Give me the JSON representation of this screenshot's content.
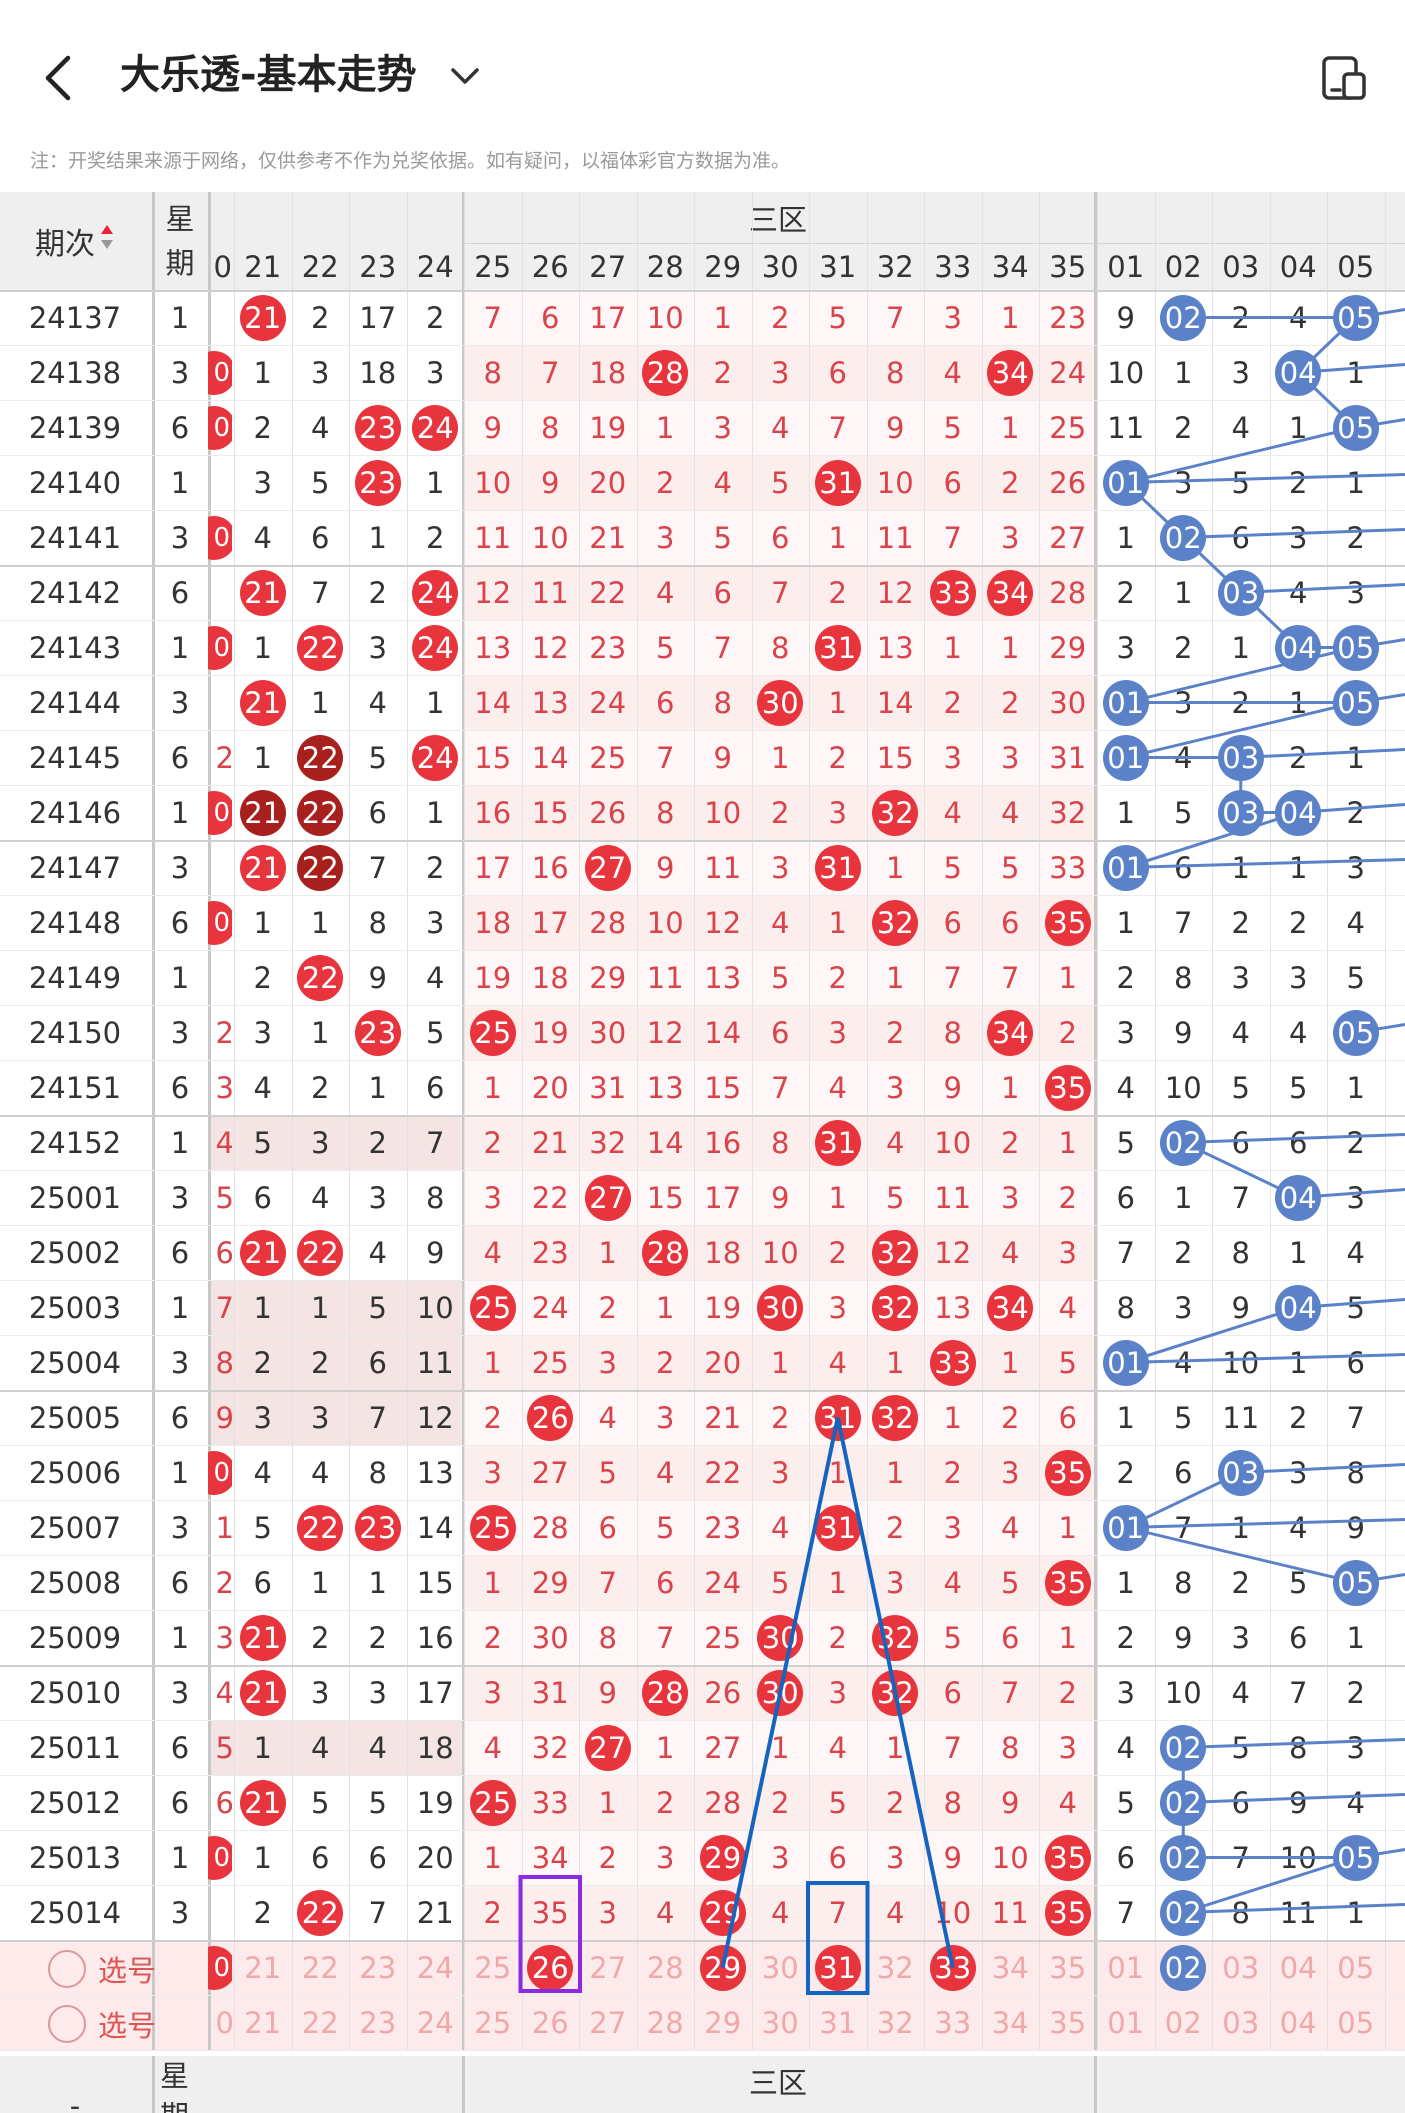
{
  "header": {
    "title": "大乐透-基本走势",
    "back_icon": "chevron-left-icon",
    "dropdown_icon": "chevron-down-icon",
    "layout_icon": "phone-layout-icon"
  },
  "note": "注：开奖结果来源于网络，仅供参考不作为兑奖依据。如有疑问，以福体彩官方数据为准。",
  "table": {
    "period_header": "期次",
    "week_header": "星期",
    "zone_header": "三区",
    "partial_col_label": "0",
    "front_cols": [
      "21",
      "22",
      "23",
      "24",
      "25",
      "26",
      "27",
      "28",
      "29",
      "30",
      "31",
      "32",
      "33",
      "34",
      "35"
    ],
    "back_cols": [
      "01",
      "02",
      "03",
      "04",
      "05"
    ],
    "rows": [
      {
        "period": "24137",
        "week": "1",
        "partial": "",
        "v": [
          "21",
          "2",
          "17",
          "2",
          "7",
          "6",
          "17",
          "10",
          "1",
          "2",
          "5",
          "7",
          "3",
          "1",
          "23"
        ],
        "b": [
          "9",
          "02",
          "2",
          "4",
          "05"
        ]
      },
      {
        "period": "24138",
        "week": "3",
        "partial": "0",
        "v": [
          "1",
          "3",
          "18",
          "3",
          "8",
          "7",
          "18",
          "28",
          "2",
          "3",
          "6",
          "8",
          "4",
          "34",
          "24"
        ],
        "b": [
          "10",
          "1",
          "3",
          "04",
          "1"
        ]
      },
      {
        "period": "24139",
        "week": "6",
        "partial": "0",
        "v": [
          "2",
          "4",
          "23",
          "24",
          "9",
          "8",
          "19",
          "1",
          "3",
          "4",
          "7",
          "9",
          "5",
          "1",
          "25"
        ],
        "b": [
          "11",
          "2",
          "4",
          "1",
          "05"
        ]
      },
      {
        "period": "24140",
        "week": "1",
        "partial": "",
        "v": [
          "3",
          "5",
          "23",
          "1",
          "10",
          "9",
          "20",
          "2",
          "4",
          "5",
          "31",
          "10",
          "6",
          "2",
          "26"
        ],
        "b": [
          "01",
          "3",
          "5",
          "2",
          "1"
        ]
      },
      {
        "period": "24141",
        "week": "3",
        "partial": "0",
        "v": [
          "4",
          "6",
          "1",
          "2",
          "11",
          "10",
          "21",
          "3",
          "5",
          "6",
          "1",
          "11",
          "7",
          "3",
          "27"
        ],
        "b": [
          "1",
          "02",
          "6",
          "3",
          "2"
        ]
      },
      {
        "period": "24142",
        "week": "6",
        "partial": "",
        "v": [
          "21",
          "7",
          "2",
          "24",
          "12",
          "11",
          "22",
          "4",
          "6",
          "7",
          "2",
          "12",
          "33",
          "34",
          "28"
        ],
        "b": [
          "2",
          "1",
          "03",
          "4",
          "3"
        ]
      },
      {
        "period": "24143",
        "week": "1",
        "partial": "0",
        "v": [
          "1",
          "22",
          "3",
          "24",
          "13",
          "12",
          "23",
          "5",
          "7",
          "8",
          "31",
          "13",
          "1",
          "1",
          "29"
        ],
        "b": [
          "3",
          "2",
          "1",
          "04",
          "05"
        ]
      },
      {
        "period": "24144",
        "week": "3",
        "partial": "",
        "v": [
          "21",
          "1",
          "4",
          "1",
          "14",
          "13",
          "24",
          "6",
          "8",
          "30",
          "1",
          "14",
          "2",
          "2",
          "30"
        ],
        "b": [
          "01",
          "3",
          "2",
          "1",
          "05"
        ]
      },
      {
        "period": "24145",
        "week": "6",
        "partial": "2",
        "v": [
          "1",
          "22",
          "5",
          "24",
          "15",
          "14",
          "25",
          "7",
          "9",
          "1",
          "2",
          "15",
          "3",
          "3",
          "31"
        ],
        "b": [
          "01",
          "4",
          "03",
          "2",
          "1"
        ]
      },
      {
        "period": "24146",
        "week": "1",
        "partial": "0",
        "v": [
          "21",
          "22",
          "6",
          "1",
          "16",
          "15",
          "26",
          "8",
          "10",
          "2",
          "3",
          "32",
          "4",
          "4",
          "32"
        ],
        "b": [
          "1",
          "5",
          "03",
          "04",
          "2"
        ]
      },
      {
        "period": "24147",
        "week": "3",
        "partial": "",
        "v": [
          "21",
          "22",
          "7",
          "2",
          "17",
          "16",
          "27",
          "9",
          "11",
          "3",
          "31",
          "1",
          "5",
          "5",
          "33"
        ],
        "b": [
          "01",
          "6",
          "1",
          "1",
          "3"
        ]
      },
      {
        "period": "24148",
        "week": "6",
        "partial": "0",
        "v": [
          "1",
          "1",
          "8",
          "3",
          "18",
          "17",
          "28",
          "10",
          "12",
          "4",
          "1",
          "32",
          "6",
          "6",
          "35"
        ],
        "b": [
          "1",
          "7",
          "2",
          "2",
          "4"
        ]
      },
      {
        "period": "24149",
        "week": "1",
        "partial": "",
        "v": [
          "2",
          "22",
          "9",
          "4",
          "19",
          "18",
          "29",
          "11",
          "13",
          "5",
          "2",
          "1",
          "7",
          "7",
          "1"
        ],
        "b": [
          "2",
          "8",
          "3",
          "3",
          "5"
        ]
      },
      {
        "period": "24150",
        "week": "3",
        "partial": "2",
        "v": [
          "3",
          "1",
          "23",
          "5",
          "25",
          "19",
          "30",
          "12",
          "14",
          "6",
          "3",
          "2",
          "8",
          "34",
          "2"
        ],
        "b": [
          "3",
          "9",
          "4",
          "4",
          "05"
        ]
      },
      {
        "period": "24151",
        "week": "6",
        "partial": "3",
        "v": [
          "4",
          "2",
          "1",
          "6",
          "1",
          "20",
          "31",
          "13",
          "15",
          "7",
          "4",
          "3",
          "9",
          "1",
          "35"
        ],
        "b": [
          "4",
          "10",
          "5",
          "5",
          "1"
        ]
      },
      {
        "period": "24152",
        "week": "1",
        "partial": "4",
        "v": [
          "5",
          "3",
          "2",
          "7",
          "2",
          "21",
          "32",
          "14",
          "16",
          "8",
          "31",
          "4",
          "10",
          "2",
          "1"
        ],
        "b": [
          "5",
          "02",
          "6",
          "6",
          "2"
        ]
      },
      {
        "period": "25001",
        "week": "3",
        "partial": "5",
        "v": [
          "6",
          "4",
          "3",
          "8",
          "3",
          "22",
          "27",
          "15",
          "17",
          "9",
          "1",
          "5",
          "11",
          "3",
          "2"
        ],
        "b": [
          "6",
          "1",
          "7",
          "04",
          "3"
        ]
      },
      {
        "period": "25002",
        "week": "6",
        "partial": "6",
        "v": [
          "21",
          "22",
          "4",
          "9",
          "4",
          "23",
          "1",
          "28",
          "18",
          "10",
          "2",
          "32",
          "12",
          "4",
          "3"
        ],
        "b": [
          "7",
          "2",
          "8",
          "1",
          "4"
        ]
      },
      {
        "period": "25003",
        "week": "1",
        "partial": "7",
        "v": [
          "1",
          "1",
          "5",
          "10",
          "25",
          "24",
          "2",
          "1",
          "19",
          "30",
          "3",
          "32",
          "13",
          "34",
          "4"
        ],
        "b": [
          "8",
          "3",
          "9",
          "04",
          "5"
        ]
      },
      {
        "period": "25004",
        "week": "3",
        "partial": "8",
        "v": [
          "2",
          "2",
          "6",
          "11",
          "1",
          "25",
          "3",
          "2",
          "20",
          "1",
          "4",
          "1",
          "33",
          "1",
          "5"
        ],
        "b": [
          "01",
          "4",
          "10",
          "1",
          "6"
        ]
      },
      {
        "period": "25005",
        "week": "6",
        "partial": "9",
        "v": [
          "3",
          "3",
          "7",
          "12",
          "2",
          "26",
          "4",
          "3",
          "21",
          "2",
          "31",
          "32",
          "1",
          "2",
          "6"
        ],
        "b": [
          "1",
          "5",
          "11",
          "2",
          "7"
        ]
      },
      {
        "period": "25006",
        "week": "1",
        "partial": "0",
        "v": [
          "4",
          "4",
          "8",
          "13",
          "3",
          "27",
          "5",
          "4",
          "22",
          "3",
          "1",
          "1",
          "2",
          "3",
          "35"
        ],
        "b": [
          "2",
          "6",
          "03",
          "3",
          "8"
        ]
      },
      {
        "period": "25007",
        "week": "3",
        "partial": "1",
        "v": [
          "5",
          "22",
          "23",
          "14",
          "25",
          "28",
          "6",
          "5",
          "23",
          "4",
          "31",
          "2",
          "3",
          "4",
          "1"
        ],
        "b": [
          "01",
          "7",
          "1",
          "4",
          "9"
        ]
      },
      {
        "period": "25008",
        "week": "6",
        "partial": "2",
        "v": [
          "6",
          "1",
          "1",
          "15",
          "1",
          "29",
          "7",
          "6",
          "24",
          "5",
          "1",
          "3",
          "4",
          "5",
          "35"
        ],
        "b": [
          "1",
          "8",
          "2",
          "5",
          "05"
        ]
      },
      {
        "period": "25009",
        "week": "1",
        "partial": "3",
        "v": [
          "21",
          "2",
          "2",
          "16",
          "2",
          "30",
          "8",
          "7",
          "25",
          "30",
          "2",
          "32",
          "5",
          "6",
          "1"
        ],
        "b": [
          "2",
          "9",
          "3",
          "6",
          "1"
        ]
      },
      {
        "period": "25010",
        "week": "3",
        "partial": "4",
        "v": [
          "21",
          "3",
          "3",
          "17",
          "3",
          "31",
          "9",
          "28",
          "26",
          "30",
          "3",
          "32",
          "6",
          "7",
          "2"
        ],
        "b": [
          "3",
          "10",
          "4",
          "7",
          "2"
        ]
      },
      {
        "period": "25011",
        "week": "6",
        "partial": "5",
        "v": [
          "1",
          "4",
          "4",
          "18",
          "4",
          "32",
          "27",
          "1",
          "27",
          "1",
          "4",
          "1",
          "7",
          "8",
          "3"
        ],
        "b": [
          "4",
          "02",
          "5",
          "8",
          "3"
        ]
      },
      {
        "period": "25012",
        "week": "6",
        "partial": "6",
        "v": [
          "21",
          "5",
          "5",
          "19",
          "25",
          "33",
          "1",
          "2",
          "28",
          "2",
          "5",
          "2",
          "8",
          "9",
          "4"
        ],
        "b": [
          "5",
          "02",
          "6",
          "9",
          "4"
        ]
      },
      {
        "period": "25013",
        "week": "1",
        "partial": "0",
        "v": [
          "1",
          "6",
          "6",
          "20",
          "1",
          "34",
          "2",
          "3",
          "29",
          "3",
          "6",
          "3",
          "9",
          "10",
          "35"
        ],
        "b": [
          "6",
          "02",
          "7",
          "10",
          "05"
        ]
      },
      {
        "period": "25014",
        "week": "3",
        "partial": "",
        "v": [
          "2",
          "22",
          "7",
          "21",
          "2",
          "35",
          "3",
          "4",
          "29",
          "4",
          "7",
          "4",
          "10",
          "11",
          "35"
        ],
        "b": [
          "7",
          "02",
          "8",
          "11",
          "1"
        ]
      }
    ],
    "pick_label": "选号",
    "pick_rows": [
      {
        "partial": "0",
        "v": [
          "21",
          "22",
          "23",
          "24",
          "25",
          "26",
          "27",
          "28",
          "29",
          "30",
          "31",
          "32",
          "33",
          "34",
          "35"
        ],
        "b": [
          "01",
          "02",
          "03",
          "04",
          "05"
        ]
      },
      {
        "partial": "0",
        "v": [
          "21",
          "22",
          "23",
          "24",
          "25",
          "26",
          "27",
          "28",
          "29",
          "30",
          "31",
          "32",
          "33",
          "34",
          "35"
        ],
        "b": [
          "01",
          "02",
          "03",
          "04",
          "05"
        ]
      }
    ],
    "footer_period": "-",
    "footer_week": "星期",
    "footer_zone": "三区"
  },
  "colors": {
    "red_ball": "#e8343c",
    "dark_red_ball": "#a8201e",
    "blue_ball": "#5b82c8",
    "blue_line": "#5b82c8",
    "red_text": "#d9434a",
    "purple_box": "#8a2be2",
    "dark_blue_line": "#1565c0"
  }
}
